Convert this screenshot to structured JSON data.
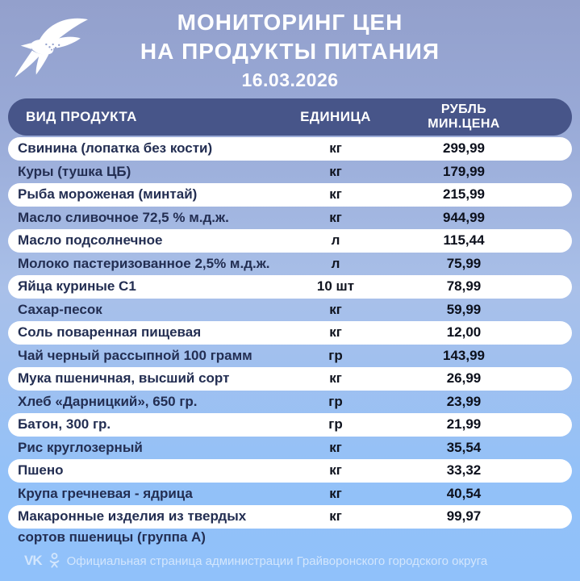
{
  "header": {
    "title_line1": "МОНИТОРИНГ ЦЕН",
    "title_line2": "НА ПРОДУКТЫ ПИТАНИЯ",
    "date": "16.03.2026"
  },
  "table": {
    "columns": {
      "product": "ВИД ПРОДУКТА",
      "unit": "ЕДИНИЦА",
      "price_line1": "РУБЛЬ",
      "price_line2": "МИН.ЦЕНА"
    },
    "rows": [
      {
        "product": "Свинина (лопатка без кости)",
        "unit": "кг",
        "price": "299,99"
      },
      {
        "product": "Куры (тушка ЦБ)",
        "unit": "кг",
        "price": "179,99"
      },
      {
        "product": "Рыба мороженая (минтай)",
        "unit": "кг",
        "price": "215,99"
      },
      {
        "product": "Масло сливочное 72,5 % м.д.ж.",
        "unit": "кг",
        "price": "944,99"
      },
      {
        "product": "Масло подсолнечное",
        "unit": "л",
        "price": "115,44"
      },
      {
        "product": "Молоко пастеризованное 2,5% м.д.ж.",
        "unit": "л",
        "price": "75,99"
      },
      {
        "product": "Яйца куриные С1",
        "unit": "10 шт",
        "price": "78,99"
      },
      {
        "product": "Сахар-песок",
        "unit": "кг",
        "price": "59,99"
      },
      {
        "product": "Соль поваренная пищевая",
        "unit": "кг",
        "price": "12,00"
      },
      {
        "product": "Чай черный рассыпной 100 грамм",
        "unit": "гр",
        "price": "143,99"
      },
      {
        "product": "Мука пшеничная, высший сорт",
        "unit": "кг",
        "price": "26,99"
      },
      {
        "product": "Хлеб «Дарницкий», 650 гр.",
        "unit": "гр",
        "price": "23,99"
      },
      {
        "product": "Батон, 300 гр.",
        "unit": "гр",
        "price": "21,99"
      },
      {
        "product": "Рис круглозерный",
        "unit": "кг",
        "price": "35,54"
      },
      {
        "product": "Пшено",
        "unit": "кг",
        "price": "33,32"
      },
      {
        "product": "Крупа гречневая - ядрица",
        "unit": "кг",
        "price": "40,54"
      },
      {
        "product": "Макаронные изделия из твердых",
        "product_line2": "сортов пшеницы (группа А)",
        "unit": "кг",
        "price": "99,97"
      }
    ]
  },
  "footer": {
    "text": "Официальная страница администрации Грайворонского городского округа",
    "vk_icon_label": "VK"
  },
  "colors": {
    "bg_top": "#93a0cc",
    "bg_bottom": "#90c1fa",
    "table_header_bg": "#475589",
    "row_white": "#ffffff",
    "product_text": "#232e52",
    "price_text": "#0c101c",
    "title_text": "#ffffff"
  }
}
